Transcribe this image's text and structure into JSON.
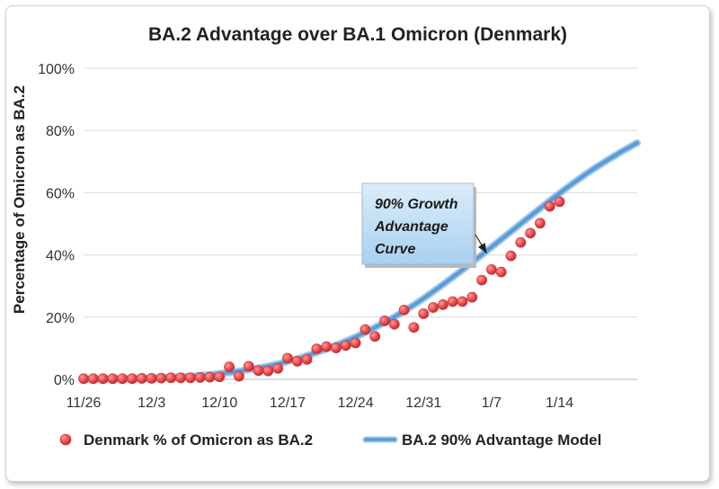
{
  "chart_data": {
    "type": "scatter",
    "title": "BA.2 Advantage over BA.1 Omicron (Denmark)",
    "xlabel": "",
    "ylabel": "Percentage of Omicron as BA.2",
    "xlim": [
      0,
      57
    ],
    "ylim": [
      0,
      100
    ],
    "x_ticks": [
      {
        "x": 0,
        "label": "11/26"
      },
      {
        "x": 7,
        "label": "12/3"
      },
      {
        "x": 14,
        "label": "12/10"
      },
      {
        "x": 21,
        "label": "12/17"
      },
      {
        "x": 28,
        "label": "12/24"
      },
      {
        "x": 35,
        "label": "12/31"
      },
      {
        "x": 42,
        "label": "1/7"
      },
      {
        "x": 49,
        "label": "1/14"
      }
    ],
    "y_ticks": [
      {
        "y": 0,
        "label": "0%"
      },
      {
        "y": 20,
        "label": "20%"
      },
      {
        "y": 40,
        "label": "40%"
      },
      {
        "y": 60,
        "label": "60%"
      },
      {
        "y": 80,
        "label": "80%"
      },
      {
        "y": 100,
        "label": "100%"
      }
    ],
    "series": [
      {
        "name": "Denmark % of Omicron as BA.2",
        "kind": "scatter",
        "color": "#e8474a",
        "points": [
          [
            0,
            0.2
          ],
          [
            1,
            0.2
          ],
          [
            2,
            0.2
          ],
          [
            3,
            0.2
          ],
          [
            4,
            0.2
          ],
          [
            5,
            0.2
          ],
          [
            6,
            0.3
          ],
          [
            7,
            0.3
          ],
          [
            8,
            0.4
          ],
          [
            9,
            0.5
          ],
          [
            10,
            0.5
          ],
          [
            11,
            0.5
          ],
          [
            12,
            0.6
          ],
          [
            13,
            0.7
          ],
          [
            14,
            0.8
          ],
          [
            15,
            4.0
          ],
          [
            16,
            1.0
          ],
          [
            17,
            4.2
          ],
          [
            18,
            2.8
          ],
          [
            19,
            2.7
          ],
          [
            20,
            3.5
          ],
          [
            21,
            6.8
          ],
          [
            22,
            5.8
          ],
          [
            23,
            6.4
          ],
          [
            24,
            9.8
          ],
          [
            25,
            10.5
          ],
          [
            26,
            10.1
          ],
          [
            27,
            10.9
          ],
          [
            28,
            11.7
          ],
          [
            29,
            16.0
          ],
          [
            30,
            13.8
          ],
          [
            31,
            18.8
          ],
          [
            32,
            17.7
          ],
          [
            33,
            22.3
          ],
          [
            34,
            16.7
          ],
          [
            35,
            21.1
          ],
          [
            36,
            23.1
          ],
          [
            37,
            24.0
          ],
          [
            38,
            25.0
          ],
          [
            39,
            25.0
          ],
          [
            40,
            26.4
          ],
          [
            41,
            31.9
          ],
          [
            42,
            35.3
          ],
          [
            43,
            34.5
          ],
          [
            44,
            39.7
          ],
          [
            45,
            44.0
          ],
          [
            46,
            47.0
          ],
          [
            47,
            50.2
          ],
          [
            48,
            55.6
          ],
          [
            49,
            57.1
          ]
        ]
      },
      {
        "name": "BA.2 90% Advantage Model",
        "kind": "line",
        "color": "#5b9bd5",
        "points": [
          [
            0,
            0.1
          ],
          [
            5,
            0.3
          ],
          [
            10,
            0.8
          ],
          [
            13,
            1.5
          ],
          [
            16,
            2.6
          ],
          [
            19,
            4.2
          ],
          [
            22,
            6.6
          ],
          [
            25,
            9.8
          ],
          [
            28,
            13.6
          ],
          [
            31,
            18.3
          ],
          [
            34,
            23.9
          ],
          [
            37,
            30.5
          ],
          [
            40,
            37.6
          ],
          [
            43,
            45.0
          ],
          [
            46,
            52.5
          ],
          [
            49,
            59.8
          ],
          [
            52,
            66.6
          ],
          [
            55,
            72.5
          ],
          [
            57,
            76.0
          ]
        ]
      }
    ],
    "annotations": [
      {
        "text": [
          "90% Growth",
          "Advantage",
          "Curve"
        ],
        "points_to": [
          41.5,
          40.5
        ]
      }
    ],
    "legend": "bottom",
    "grid": "horizontal"
  }
}
